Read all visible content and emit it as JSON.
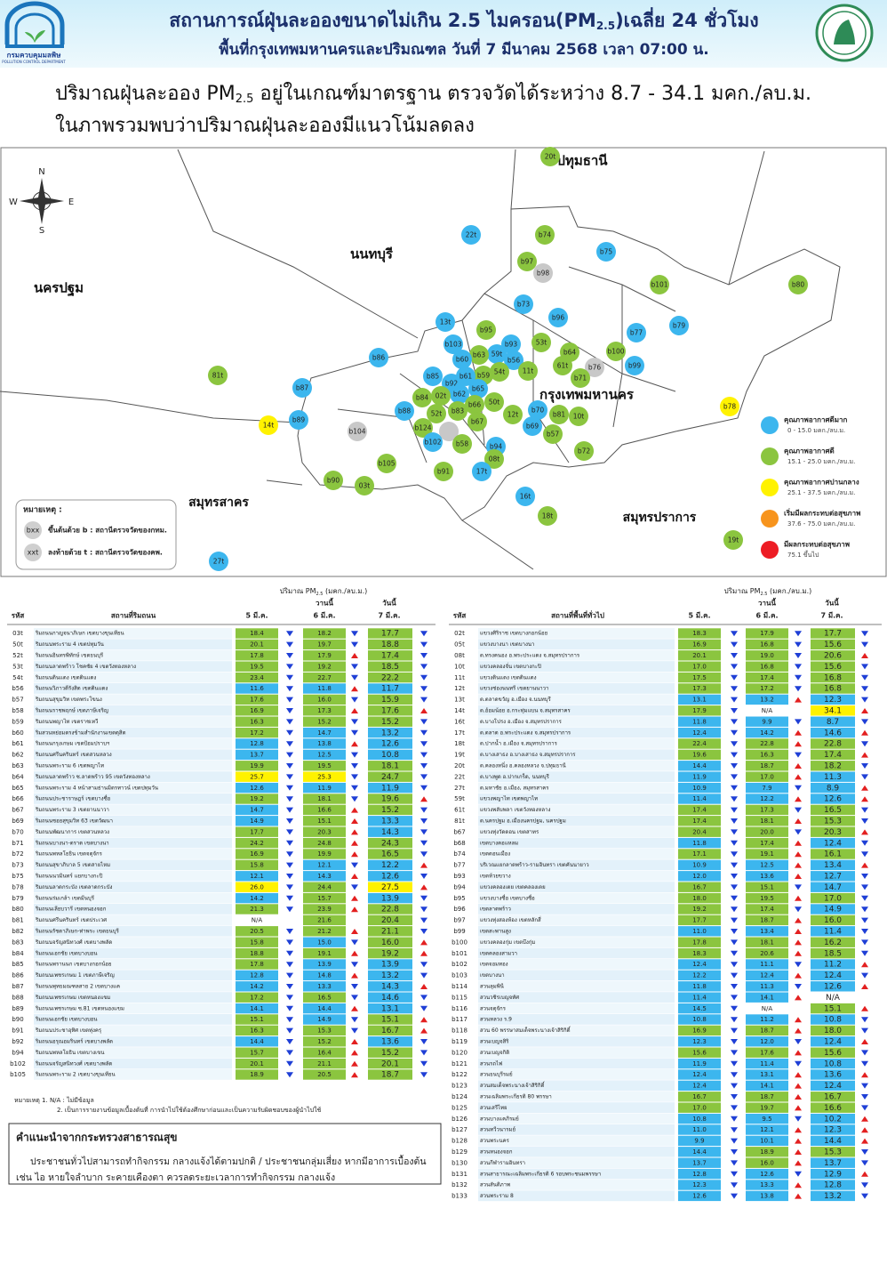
{
  "header": {
    "logo_th": "กรมควบคุมมลพิษ",
    "logo_en": "POLLUTION CONTROL DEPARTMENT",
    "title_a": "สถานการณ์ฝุ่นละอองขนาดไม่เกิน 2.5 ไมครอน(PM",
    "title_sub": "2.5",
    "title_b": ")เฉลี่ย 24 ชั่วโมง",
    "subtitle": "พื้นที่กรุงเทพมหานครและปริมณฑล วันที่ 7 มีนาคม 2568 เวลา 07:00 น."
  },
  "summary": {
    "line1_a": "ปริมาณฝุ่นละออง PM",
    "line1_sub": "2.5",
    "line1_b": " อยู่ในเกณฑ์มาตรฐาน ตรวจวัดได้ระหว่าง 8.7 - 34.1 มคก./ลบ.ม.",
    "line2": "ในภาพรวมพบว่าปริมาณฝุ่นละอองมีแนวโน้มลดลง"
  },
  "map": {
    "compass": {
      "n": "N",
      "s": "S",
      "e": "E",
      "w": "W"
    },
    "regions": [
      "ปทุมธานี",
      "นนทบุรี",
      "นครปฐม",
      "กรุงเทพมหานคร",
      "สมุทรสาคร",
      "สมุทรปราการ"
    ],
    "stations": [
      "20t",
      "22t",
      "b74",
      "b75",
      "b97",
      "b98",
      "b101",
      "b80",
      "b73",
      "b96",
      "13t",
      "b95",
      "b77",
      "b79",
      "53t",
      "b93",
      "b103",
      "59t",
      "b63",
      "b100",
      "b64",
      "b56",
      "b86",
      "b60",
      "b99",
      "11t",
      "61t",
      "b76",
      "54t",
      "b59",
      "b61",
      "b85",
      "b71",
      "b92",
      "b87",
      "81t",
      "b65",
      "b62",
      "02t",
      "b84",
      "50t",
      "b66",
      "b70",
      "b88",
      "b83",
      "52t",
      "12t",
      "b81",
      "10t",
      "b89",
      "14t",
      "b78",
      "b67",
      "b124",
      "b69",
      "b104",
      "b57",
      "b102",
      "b58",
      "b94",
      "b72",
      "b105",
      "08t",
      "b91",
      "17t",
      "b90",
      "03t",
      "16t",
      "18t",
      "19t",
      "27t"
    ],
    "legend": [
      {
        "label": "คุณภาพอากาศดีมาก",
        "range": "0 - 15.0 มคก./ลบ.ม.",
        "color": "#3cb6ee"
      },
      {
        "label": "คุณภาพอากาศดี",
        "range": "15.1 - 25.0 มคก./ลบ.ม.",
        "color": "#8bc53f"
      },
      {
        "label": "คุณภาพอากาศปานกลาง",
        "range": "25.1 - 37.5 มคก./ลบ.ม.",
        "color": "#fff200"
      },
      {
        "label": "เริ่มมีผลกระทบต่อสุขภาพ",
        "range": "37.6 - 75.0 มคก./ลบ.ม.",
        "color": "#f7941d"
      },
      {
        "label": "มีผลกระทบต่อสุขภาพ",
        "range": "75.1 ขึ้นไป",
        "color": "#ed1c24"
      }
    ],
    "note": {
      "title": "หมายเหตุ :",
      "b_icon": "bxx",
      "b_text": "ขึ้นต้นด้วย b : สถานีตรวจวัดของกทม.",
      "t_icon": "xxt",
      "t_text": "ลงท้ายด้วย t : สถานีตรวจวัดของคพ."
    }
  },
  "left_table": {
    "title_a": "ปริมาณ PM",
    "title_sub": "2.5",
    "title_b": " (มคก./ลบ.ม.)",
    "code": "รหัส",
    "place": "สถานที่ริมถนน",
    "d5": "5 มี.ค.",
    "yesterday": "วานนี้",
    "d6": "6 มี.ค.",
    "today": "วันนี้",
    "d7": "7 มี.ค.",
    "rows": [
      {
        "c": "03t",
        "n": "ริมถนนกาญจนาภิเษก เขตบางขุนเทียน",
        "v": [
          "18.4",
          "18.2",
          "17.7"
        ],
        "t": "ddd"
      },
      {
        "c": "50t",
        "n": "ริมถนนพระราม 4 เขตปทุมวัน",
        "v": [
          "20.1",
          "19.7",
          "18.8"
        ],
        "t": "ddd"
      },
      {
        "c": "52t",
        "n": "ริมถนนอินทรพิทักษ์ เขตธนบุรี",
        "v": [
          "17.8",
          "17.9",
          "17.4"
        ],
        "t": "dud"
      },
      {
        "c": "53t",
        "n": "ริมถนนลาดพร้าว โชคชัย 4 เขตวังทองหลาง",
        "v": [
          "19.5",
          "19.2",
          "18.5"
        ],
        "t": "ddd"
      },
      {
        "c": "54t",
        "n": "ริมถนนดินแดง เขตดินแดง",
        "v": [
          "23.4",
          "22.7",
          "22.2"
        ],
        "t": "ddd"
      },
      {
        "c": "b56",
        "n": "ริมถนนวิภาวดีรังสิต เขตดินแดง",
        "v": [
          "11.6",
          "11.8",
          "11.7"
        ],
        "t": "dud"
      },
      {
        "c": "b57",
        "n": "ริมถนนสุขุมวิท เขตพระโขนง",
        "v": [
          "17.6",
          "16.0",
          "15.9"
        ],
        "t": "ddd"
      },
      {
        "c": "b58",
        "n": "ริมถนนราชพฤกษ์ เขตภาษีเจริญ",
        "v": [
          "16.9",
          "17.3",
          "17.6"
        ],
        "t": "duu"
      },
      {
        "c": "b59",
        "n": "ริมถนนพญาไท เขตราชเทวี",
        "v": [
          "16.3",
          "15.2",
          "15.2"
        ],
        "t": "ddd"
      },
      {
        "c": "b60",
        "n": "ริมสวนหย่อมตรงข้ามสำนักงานเขตดุสิต",
        "v": [
          "17.2",
          "14.7",
          "13.2"
        ],
        "t": "ddd"
      },
      {
        "c": "b61",
        "n": "ริมถนนกรุงเกษม เขตป้อมปราบฯ",
        "v": [
          "12.8",
          "13.8",
          "12.6"
        ],
        "t": "dud"
      },
      {
        "c": "b62",
        "n": "ริมถนนศรีนครินทร์ เขตสวนหลวง",
        "v": [
          "13.7",
          "12.5",
          "10.8"
        ],
        "t": "ddd"
      },
      {
        "c": "b63",
        "n": "ริมถนนพระราม 6 เขตพญาไท",
        "v": [
          "19.9",
          "19.5",
          "18.1"
        ],
        "t": "ddd"
      },
      {
        "c": "b64",
        "n": "ริมถนนลาดพร้าว ซ.ลาดพร้าว 95 เขตวังทองหลาง",
        "v": [
          "25.7",
          "25.3",
          "24.7"
        ],
        "t": "ddd"
      },
      {
        "c": "b65",
        "n": "ริมถนนพระราม 4 หน้าสามย่านมิตรทาวน์ เขตปทุมวัน",
        "v": [
          "12.6",
          "11.9",
          "11.9"
        ],
        "t": "ddd"
      },
      {
        "c": "b66",
        "n": "ริมถนนประชาราษฎร์ เขตบางซื่อ",
        "v": [
          "19.2",
          "18.1",
          "19.6"
        ],
        "t": "ddu"
      },
      {
        "c": "b67",
        "n": "ริมถนนพระราม 3 เขตยานนาวา",
        "v": [
          "14.7",
          "16.6",
          "15.2"
        ],
        "t": "dud"
      },
      {
        "c": "b69",
        "n": "ริมถนนซอยสุขุมวิท 63 เขตวัฒนา",
        "v": [
          "14.9",
          "15.1",
          "13.3"
        ],
        "t": "dud"
      },
      {
        "c": "b70",
        "n": "ริมถนนพัฒนาการ เขตสวนหลวง",
        "v": [
          "17.7",
          "20.3",
          "14.3"
        ],
        "t": "dud"
      },
      {
        "c": "b71",
        "n": "ริมถนนบางนา-ตราด เขตบางนา",
        "v": [
          "24.2",
          "24.8",
          "24.3"
        ],
        "t": "dud"
      },
      {
        "c": "b72",
        "n": "ริมถนนพหลโยธิน เขตจตุจักร",
        "v": [
          "16.9",
          "19.9",
          "16.5"
        ],
        "t": "dud"
      },
      {
        "c": "b73",
        "n": "ริมถนนสุขาภิบาล 5 เขตสายไหม",
        "v": [
          "15.8",
          "12.1",
          "12.2"
        ],
        "t": "ddu"
      },
      {
        "c": "b75",
        "n": "ริมถนนนวมินทร์ แยกบางกะปิ",
        "v": [
          "12.1",
          "14.3",
          "12.6"
        ],
        "t": "dud"
      },
      {
        "c": "b78",
        "n": "ริมถนนลาดกระบัง เขตลาดกระบัง",
        "v": [
          "26.0",
          "24.4",
          "27.5"
        ],
        "t": "ddu"
      },
      {
        "c": "b79",
        "n": "ริมถนนร่มเกล้า เขตมีนบุรี",
        "v": [
          "14.2",
          "15.7",
          "13.9"
        ],
        "t": "dud"
      },
      {
        "c": "b80",
        "n": "ริมถนนเลียบวารี เขตหนองจอก",
        "v": [
          "21.3",
          "23.9",
          "22.8"
        ],
        "t": "dud"
      },
      {
        "c": "b81",
        "n": "ริมถนนศรีนครินทร์ เขตประเวศ",
        "v": [
          "N/A",
          "21.6",
          "20.4"
        ],
        "t": "--d"
      },
      {
        "c": "b82",
        "n": "ริมถนนรัชดาภิเษก-ท่าพระ เขตธนบุรี",
        "v": [
          "20.5",
          "21.2",
          "21.1"
        ],
        "t": "dud"
      },
      {
        "c": "b83",
        "n": "ริมถนนจรัญสนิทวงศ์ เขตบางพลัด",
        "v": [
          "15.8",
          "15.0",
          "16.0"
        ],
        "t": "ddu"
      },
      {
        "c": "b84",
        "n": "ริมถนนเอกชัย เขตบางบอน",
        "v": [
          "18.8",
          "19.1",
          "19.2"
        ],
        "t": "duu"
      },
      {
        "c": "b85",
        "n": "ริมถนนพรานนก เขตบางกอกน้อย",
        "v": [
          "17.8",
          "13.9",
          "13.9"
        ],
        "t": "ddd"
      },
      {
        "c": "b86",
        "n": "ริมถนนเพชรเกษม 1 เขตภาษีเจริญ",
        "v": [
          "12.8",
          "14.8",
          "13.2"
        ],
        "t": "dud"
      },
      {
        "c": "b87",
        "n": "ริมถนนพุทธมณฑลสาย 2 เขตบางแค",
        "v": [
          "14.2",
          "13.3",
          "14.3"
        ],
        "t": "ddu"
      },
      {
        "c": "b88",
        "n": "ริมถนนเพชรเกษม เขตหนองแขม",
        "v": [
          "17.2",
          "16.5",
          "14.6"
        ],
        "t": "ddd"
      },
      {
        "c": "b89",
        "n": "ริมถนนเพชรเกษม ซ.81 เขตหนองแขม",
        "v": [
          "14.1",
          "14.4",
          "13.1"
        ],
        "t": "dud"
      },
      {
        "c": "b90",
        "n": "ริมถนนเอกชัย เขตบางบอน",
        "v": [
          "15.1",
          "14.9",
          "15.1"
        ],
        "t": "ddu"
      },
      {
        "c": "b91",
        "n": "ริมถนนประชาอุทิศ เขตทุ่งครุ",
        "v": [
          "16.3",
          "15.3",
          "16.7"
        ],
        "t": "ddu"
      },
      {
        "c": "b92",
        "n": "ริมถนนอรุณอมรินทร์ เขตบางพลัด",
        "v": [
          "14.4",
          "15.2",
          "13.6"
        ],
        "t": "dud"
      },
      {
        "c": "b94",
        "n": "ริมถนนพหลโยธิน เขตบางเขน",
        "v": [
          "15.7",
          "16.4",
          "15.2"
        ],
        "t": "dud"
      },
      {
        "c": "b102",
        "n": "ริมถนนจรัญสนิทวงศ์ เขตบางพลัด",
        "v": [
          "20.1",
          "21.1",
          "20.1"
        ],
        "t": "dud"
      },
      {
        "c": "b105",
        "n": "ริมถนนพระราม 2 เขตบางขุนเทียน",
        "v": [
          "18.9",
          "20.5",
          "18.7"
        ],
        "t": "dud"
      }
    ]
  },
  "right_table": {
    "title_a": "ปริมาณ PM",
    "title_sub": "2.5",
    "title_b": " (มคก./ลบ.ม.)",
    "code": "รหัส",
    "place": "สถานที่พื้นที่ทั่วไป",
    "d5": "5 มี.ค.",
    "yesterday": "วานนี้",
    "d6": "6 มี.ค.",
    "today": "วันนี้",
    "d7": "7 มี.ค.",
    "rows": [
      {
        "c": "02t",
        "n": "แขวงศิริราช เขตบางกอกน้อย",
        "v": [
          "18.3",
          "17.9",
          "17.7"
        ],
        "t": "ddd"
      },
      {
        "c": "05t",
        "n": "แขวงบางนา เขตบางนา",
        "v": [
          "16.9",
          "16.8",
          "15.6"
        ],
        "t": "ddd"
      },
      {
        "c": "08t",
        "n": "ต.ทรงคนอง อ.พระประแดง จ.สมุทรปราการ",
        "v": [
          "20.1",
          "19.0",
          "20.6"
        ],
        "t": "ddu"
      },
      {
        "c": "10t",
        "n": "แขวงคลองจั่น เขตบางกะปิ",
        "v": [
          "17.0",
          "16.8",
          "15.6"
        ],
        "t": "ddd"
      },
      {
        "c": "11t",
        "n": "แขวงดินแดง เขตดินแดง",
        "v": [
          "17.5",
          "17.4",
          "16.8"
        ],
        "t": "ddd"
      },
      {
        "c": "12t",
        "n": "แขวงช่องนนทรี เขตยานนาวา",
        "v": [
          "17.3",
          "17.2",
          "16.8"
        ],
        "t": "ddd"
      },
      {
        "c": "13t",
        "n": "ต.ตลาดขวัญ อ.เมือง จ.นนทบุรี",
        "v": [
          "13.1",
          "13.2",
          "12.3"
        ],
        "t": "dud"
      },
      {
        "c": "14t",
        "n": "ต.อ้อมน้อย อ.กระทุ่มแบน จ.สมุทรสาคร",
        "v": [
          "17.9",
          "N/A",
          "34.1"
        ],
        "t": "d-u"
      },
      {
        "c": "16t",
        "n": "ต.บางโปรง อ.เมือง จ.สมุทรปราการ",
        "v": [
          "11.8",
          "9.9",
          "8.7"
        ],
        "t": "ddd"
      },
      {
        "c": "17t",
        "n": "ต.ตลาด อ.พระประแดง จ.สมุทรปราการ",
        "v": [
          "12.4",
          "14.2",
          "14.6"
        ],
        "t": "duu"
      },
      {
        "c": "18t",
        "n": "ต.ปากน้ำ อ.เมือง จ.สมุทรปราการ",
        "v": [
          "22.4",
          "22.8",
          "22.8"
        ],
        "t": "dud"
      },
      {
        "c": "19t",
        "n": "ต.บางเสาธง อ.บางเสาธง จ.สมุทรปราการ",
        "v": [
          "19.6",
          "16.3",
          "17.4"
        ],
        "t": "ddu"
      },
      {
        "c": "20t",
        "n": "ต.คลองหนึ่ง อ.คลองหลวง จ.ปทุมธานี",
        "v": [
          "14.4",
          "18.7",
          "18.2"
        ],
        "t": "dud"
      },
      {
        "c": "22t",
        "n": "ต.บางพูด อ.ปากเกร็ด, นนทบุรี",
        "v": [
          "11.9",
          "17.0",
          "11.3"
        ],
        "t": "dud"
      },
      {
        "c": "27t",
        "n": "ต.มหาชัย อ.เมือง, สมุทรสาคร",
        "v": [
          "10.9",
          "7.9",
          "8.9"
        ],
        "t": "ddu"
      },
      {
        "c": "59t",
        "n": "แขวงพญาไท เขตพญาไท",
        "v": [
          "11.4",
          "12.2",
          "12.6"
        ],
        "t": "duu"
      },
      {
        "c": "61t",
        "n": "แขวงพลับพลา เขตวังทองหลาง",
        "v": [
          "17.4",
          "17.3",
          "16.5"
        ],
        "t": "ddd"
      },
      {
        "c": "81t",
        "n": "ต.นครปฐม อ.เมืองนครปฐม, นครปฐม",
        "v": [
          "17.4",
          "18.1",
          "15.3"
        ],
        "t": "dud"
      },
      {
        "c": "b67",
        "n": "แขวงทุ่งวัดดอน เขตสาทร",
        "v": [
          "20.4",
          "20.0",
          "20.3"
        ],
        "t": "ddu"
      },
      {
        "c": "b68",
        "n": "เขตบางคอแหลม",
        "v": [
          "11.8",
          "17.4",
          "12.4"
        ],
        "t": "dud"
      },
      {
        "c": "b74",
        "n": "เขตดอนเมือง",
        "v": [
          "17.1",
          "19.1",
          "16.1"
        ],
        "t": "dud"
      },
      {
        "c": "b77",
        "n": "บริเวณแยกลาดพร้าว-รามอินทรา เขตคันนายาว",
        "v": [
          "10.9",
          "12.5",
          "13.4"
        ],
        "t": "duu"
      },
      {
        "c": "b93",
        "n": "เขตห้วยขวาง",
        "v": [
          "12.0",
          "13.6",
          "12.7"
        ],
        "t": "dud"
      },
      {
        "c": "b94",
        "n": "แขวงคลองเตย เขตคลองเตย",
        "v": [
          "16.7",
          "15.1",
          "14.7"
        ],
        "t": "ddd"
      },
      {
        "c": "b95",
        "n": "แขวงบางซื่อ เขตบางซื่อ",
        "v": [
          "18.0",
          "19.5",
          "17.0"
        ],
        "t": "dud"
      },
      {
        "c": "b96",
        "n": "เขตลาดพร้าว",
        "v": [
          "19.2",
          "17.4",
          "14.9"
        ],
        "t": "ddd"
      },
      {
        "c": "b97",
        "n": "แขวงทุ่งสองห้อง เขตหลักสี่",
        "v": [
          "17.7",
          "18.7",
          "16.0"
        ],
        "t": "dud"
      },
      {
        "c": "b99",
        "n": "เขตสะพานสูง",
        "v": [
          "11.0",
          "13.4",
          "11.4"
        ],
        "t": "dud"
      },
      {
        "c": "b100",
        "n": "แขวงคลองกุ่ม เขตบึงกุ่ม",
        "v": [
          "17.8",
          "18.1",
          "16.2"
        ],
        "t": "dud"
      },
      {
        "c": "b101",
        "n": "เขตคลองสามวา",
        "v": [
          "18.3",
          "20.6",
          "18.5"
        ],
        "t": "dud"
      },
      {
        "c": "b102",
        "n": "เขตจอมทอง",
        "v": [
          "12.4",
          "11.1",
          "11.2"
        ],
        "t": "ddu"
      },
      {
        "c": "b103",
        "n": "เขตบางนา",
        "v": [
          "12.2",
          "12.4",
          "12.4"
        ],
        "t": "dud"
      },
      {
        "c": "b114",
        "n": "สวนลุมพินี",
        "v": [
          "11.8",
          "11.3",
          "12.6"
        ],
        "t": "ddu"
      },
      {
        "c": "b115",
        "n": "สวนวชิรเบญจทัศ",
        "v": [
          "11.4",
          "14.1",
          "N/A"
        ],
        "t": "du-"
      },
      {
        "c": "b116",
        "n": "สวนจตุจักร",
        "v": [
          "14.5",
          "N/A",
          "15.1"
        ],
        "t": "d-u"
      },
      {
        "c": "b117",
        "n": "สวนหลวง ร.9",
        "v": [
          "10.8",
          "11.2",
          "10.8"
        ],
        "t": "dud"
      },
      {
        "c": "b118",
        "n": "สวน 60 พรรษาสมเด็จพระนางเจ้าสิริกิติ์",
        "v": [
          "16.9",
          "18.7",
          "18.0"
        ],
        "t": "dud"
      },
      {
        "c": "b119",
        "n": "สวนเบญจสิริ",
        "v": [
          "12.3",
          "12.0",
          "12.4"
        ],
        "t": "ddu"
      },
      {
        "c": "b120",
        "n": "สวนเบญจกิติ",
        "v": [
          "15.6",
          "17.6",
          "15.6"
        ],
        "t": "dud"
      },
      {
        "c": "b121",
        "n": "สวนรถไฟ",
        "v": [
          "11.9",
          "11.4",
          "10.8"
        ],
        "t": "ddd"
      },
      {
        "c": "b122",
        "n": "สวนธนบุรีรมย์",
        "v": [
          "12.4",
          "13.1",
          "13.6"
        ],
        "t": "duu"
      },
      {
        "c": "b123",
        "n": "สวนสมเด็จพระนางเจ้าสิริกิติ์",
        "v": [
          "12.4",
          "14.1",
          "12.4"
        ],
        "t": "dud"
      },
      {
        "c": "b124",
        "n": "สวนเฉลิมพระเกียรติ 80 พรรษา",
        "v": [
          "16.7",
          "18.7",
          "16.7"
        ],
        "t": "dud"
      },
      {
        "c": "b125",
        "n": "สวนเสรีไทย",
        "v": [
          "17.0",
          "19.7",
          "16.6"
        ],
        "t": "dud"
      },
      {
        "c": "b126",
        "n": "สวนบางแคภิรมย์",
        "v": [
          "10.8",
          "9.5",
          "10.2"
        ],
        "t": "ddu"
      },
      {
        "c": "b127",
        "n": "สวนทวีวนารมย์",
        "v": [
          "11.0",
          "12.1",
          "12.3"
        ],
        "t": "duu"
      },
      {
        "c": "b128",
        "n": "สวนพระนคร",
        "v": [
          "9.9",
          "10.1",
          "14.4"
        ],
        "t": "duu"
      },
      {
        "c": "b129",
        "n": "สวนหนองจอก",
        "v": [
          "14.4",
          "18.9",
          "15.3"
        ],
        "t": "dud"
      },
      {
        "c": "b130",
        "n": "สวนกีฬารามอินทรา",
        "v": [
          "13.7",
          "16.0",
          "13.7"
        ],
        "t": "dud"
      },
      {
        "c": "b131",
        "n": "สวนสาธารณะเฉลิมพระเกียรติ 6 รอบพระชนมพรรษา",
        "v": [
          "12.8",
          "12.6",
          "12.9"
        ],
        "t": "ddu"
      },
      {
        "c": "b132",
        "n": "สวนสันติภาพ",
        "v": [
          "12.3",
          "13.3",
          "12.8"
        ],
        "t": "dud"
      },
      {
        "c": "b133",
        "n": "สวนพระราม 8",
        "v": [
          "12.6",
          "13.8",
          "13.2"
        ],
        "t": "dud"
      }
    ]
  },
  "footnotes": [
    "หมายเหตุ 1. N/A : ไม่มีข้อมูล",
    "2. เป็นการรายงานข้อมูลเบื้องต้นที่ การนำไปใช้ต้องศึกษาก่อนและเป็นความรับผิดชอบของผู้นำไปใช้"
  ],
  "advice": {
    "title": "คำแนะนำจากกระทรวงสาธารณสุข",
    "line1": "ประชาชนทั่วไปสามารถทำกิจกรรม กลางแจ้งได้ตามปกติ / ประชาชนกลุ่มเสี่ยง หากมีอาการเบื้องต้น",
    "line2": "เช่น ไอ หายใจลำบาก ระคายเคืองตา ควรลดระยะเวลาการทำกิจกรรม กลางแจ้ง"
  }
}
